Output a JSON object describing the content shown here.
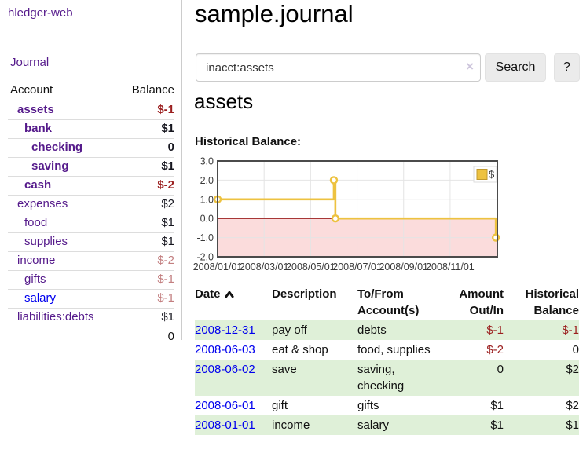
{
  "app": {
    "brand": "hledger-web"
  },
  "sidebar": {
    "journal_label": "Journal",
    "accounts_table": {
      "headers": {
        "account": "Account",
        "balance": "Balance"
      },
      "rows": [
        {
          "account": "assets",
          "balance": "$-1",
          "indent": 0,
          "bold": true
        },
        {
          "account": "bank",
          "balance": "$1",
          "indent": 1,
          "bold": true
        },
        {
          "account": "checking",
          "balance": "0",
          "indent": 2,
          "bold": true
        },
        {
          "account": "saving",
          "balance": "$1",
          "indent": 2,
          "bold": true
        },
        {
          "account": "cash",
          "balance": "$-2",
          "indent": 1,
          "bold": true
        },
        {
          "account": "expenses",
          "balance": "$2",
          "indent": 0,
          "bold": false
        },
        {
          "account": "food",
          "balance": "$1",
          "indent": 1,
          "bold": false
        },
        {
          "account": "supplies",
          "balance": "$1",
          "indent": 1,
          "bold": false
        },
        {
          "account": "income",
          "balance": "$-2",
          "indent": 0,
          "bold": false
        },
        {
          "account": "gifts",
          "balance": "$-1",
          "indent": 1,
          "bold": false
        },
        {
          "account": "salary",
          "balance": "$-1",
          "indent": 1,
          "bold": false,
          "link_style": "blue"
        },
        {
          "account": "liabilities:debts",
          "balance": "$1",
          "indent": 0,
          "bold": false
        }
      ],
      "total": "0"
    }
  },
  "header": {
    "title": "sample.journal"
  },
  "search": {
    "value": "inacct:assets",
    "clear_icon": "×",
    "button_label": "Search",
    "help_label": "?"
  },
  "account_page": {
    "title": "assets",
    "chart_label": "Historical Balance:"
  },
  "chart_data": {
    "type": "line",
    "step": true,
    "title": "Historical Balance:",
    "ylim": [
      -2,
      3
    ],
    "x_range_months": [
      0,
      12.03
    ],
    "grid": true,
    "legend_position": "top-right",
    "series": [
      {
        "name": "$",
        "color": "#edc240",
        "points": [
          {
            "date": "2008-01-01",
            "value": 1
          },
          {
            "date": "2008-06-01",
            "value": 2
          },
          {
            "date": "2008-06-03",
            "value": 0
          },
          {
            "date": "2008-12-31",
            "value": -1
          }
        ]
      }
    ],
    "y_ticks": [
      {
        "value": 3,
        "label": "3.0"
      },
      {
        "value": 2,
        "label": "2.0"
      },
      {
        "value": 1,
        "label": "1.0"
      },
      {
        "value": 0,
        "label": "0.0"
      },
      {
        "value": -1,
        "label": "-1.0"
      },
      {
        "value": -2,
        "label": "-2.0"
      }
    ],
    "x_ticks": [
      {
        "month": 0,
        "label": "2008/01/01"
      },
      {
        "month": 2,
        "label": "2008/03/01"
      },
      {
        "month": 4,
        "label": "2008/05/01"
      },
      {
        "month": 6,
        "label": "2008/07/01"
      },
      {
        "month": 8,
        "label": "2008/09/01"
      },
      {
        "month": 10,
        "label": "2008/11/01"
      }
    ],
    "negative_fill": "#fbdcdc",
    "zero_line_color": "#8b0000",
    "legend": {
      "label": "$"
    }
  },
  "register": {
    "columns": [
      "Date",
      "Description",
      "To/From Account(s)",
      "Amount Out/In",
      "Historical Balance"
    ],
    "sort_icon": "chevron-up",
    "rows": [
      {
        "date": "2008-12-31",
        "description": "pay off",
        "accounts": "debts",
        "amount": "$-1",
        "balance": "$-1"
      },
      {
        "date": "2008-06-03",
        "description": "eat & shop",
        "accounts": "food, supplies",
        "amount": "$-2",
        "balance": "0"
      },
      {
        "date": "2008-06-02",
        "description": "save",
        "accounts": "saving, checking",
        "amount": "0",
        "balance": "$2"
      },
      {
        "date": "2008-06-01",
        "description": "gift",
        "accounts": "gifts",
        "amount": "$1",
        "balance": "$2"
      },
      {
        "date": "2008-01-01",
        "description": "income",
        "accounts": "salary",
        "amount": "$1",
        "balance": "$1"
      }
    ]
  },
  "colors": {
    "link_purple": "#551a8b",
    "link_blue": "#0000ee",
    "negative_strong": "#9b1f1f",
    "negative_soft": "#c37f80",
    "row_stripe_green": "#dff0d8",
    "chart_line_gold": "#edc240",
    "chart_negative_pink": "#fbdcdc",
    "chart_zero_line": "#8b0000"
  }
}
